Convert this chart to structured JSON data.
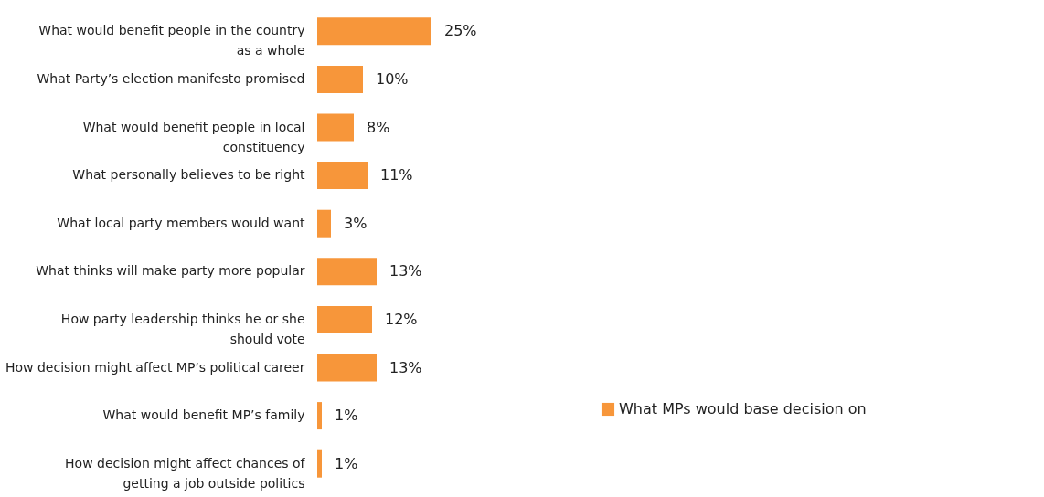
{
  "chart_data": {
    "type": "bar",
    "orientation": "horizontal",
    "categories": [
      "What would benefit people in the country\nas a whole",
      "What Party’s election manifesto promised",
      "What would benefit people in local\nconstituency",
      "What personally believes to be right",
      "What local party members would want",
      "What thinks will make party more popular",
      "How party leadership thinks he or she\nshould vote",
      "How decision might affect MP’s political career",
      "What would benefit MP’s family",
      "How decision might affect chances of\ngetting a job outside politics"
    ],
    "series": [
      {
        "name": "What MPs would base decision on",
        "color": "#f7963a",
        "values": [
          25,
          10,
          8,
          11,
          3,
          13,
          12,
          13,
          1,
          1
        ],
        "value_labels": [
          "25%",
          "10%",
          "8%",
          "11%",
          "3%",
          "13%",
          "12%",
          "13%",
          "1%",
          "1%"
        ]
      }
    ],
    "legend": "right"
  }
}
